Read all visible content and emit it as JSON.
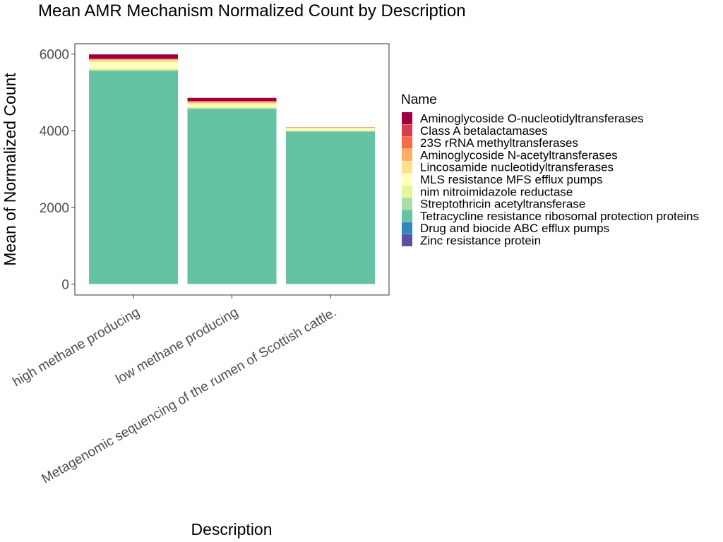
{
  "chart_data": {
    "type": "bar",
    "stacked": true,
    "title": "Mean AMR Mechanism Normalized Count by Description",
    "xlabel": "Description",
    "ylabel": "Mean of Normalized Count",
    "ylim": [
      0,
      6200
    ],
    "yticks": [
      0,
      2000,
      4000,
      6000
    ],
    "grid": false,
    "legend_title": "Name",
    "legend_position": "right",
    "categories": [
      "high methane producing",
      "low methane producing",
      "Metagenomic sequencing of the rumen of Scottish cattle."
    ],
    "series": [
      {
        "name": "Zinc resistance protein",
        "color": "#5E4FA2",
        "values": [
          0,
          0,
          0
        ]
      },
      {
        "name": "Drug and biocide ABC efflux pumps",
        "color": "#3288BD",
        "values": [
          0,
          0,
          0
        ]
      },
      {
        "name": "Tetracycline resistance ribosomal protection proteins",
        "color": "#66C2A5",
        "values": [
          5560,
          4570,
          3975
        ]
      },
      {
        "name": "Streptothricin acetyltransferase",
        "color": "#ABDDA4",
        "values": [
          25,
          20,
          15
        ]
      },
      {
        "name": "nim nitroimidazole reductase",
        "color": "#E6F598",
        "values": [
          40,
          30,
          20
        ]
      },
      {
        "name": "MLS resistance MFS efflux pumps",
        "color": "#FFFFBF",
        "values": [
          160,
          70,
          50
        ]
      },
      {
        "name": "Lincosamide nucleotidyltransferases",
        "color": "#FEE08B",
        "values": [
          60,
          40,
          20
        ]
      },
      {
        "name": "Aminoglycoside N-acetyltransferases",
        "color": "#FDAE61",
        "values": [
          15,
          20,
          5
        ]
      },
      {
        "name": "23S rRNA methyltransferases",
        "color": "#F46D43",
        "values": [
          10,
          15,
          5
        ]
      },
      {
        "name": "Class A betalactamases",
        "color": "#D53E4F",
        "values": [
          10,
          10,
          0
        ]
      },
      {
        "name": "Aminoglycoside O-nucleotidyltransferases",
        "color": "#9E0142",
        "values": [
          110,
          80,
          0
        ]
      }
    ]
  }
}
